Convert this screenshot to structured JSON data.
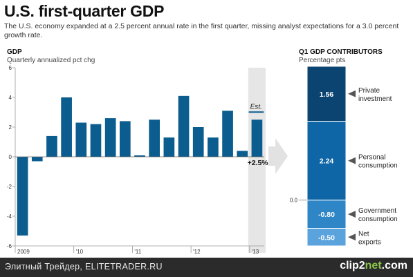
{
  "header": {
    "title": "U.S. first-quarter GDP",
    "subtitle": "The U.S. economy expanded at a 2.5 percent annual rate in the first quarter, missing analyst expectations for a 3.0 percent growth rate."
  },
  "left_panel": {
    "title": "GDP",
    "subtitle": "Quarterly annualized pct chg"
  },
  "right_panel": {
    "title": "Q1 GDP CONTRIBUTORS",
    "subtitle": "Percentage pts"
  },
  "footer": {
    "text": "Элитный Трейдер, ELITETRADER.RU",
    "logo_main": "clip2",
    "logo_accent": "net",
    "logo_suffix": ".com"
  },
  "colors": {
    "bar": "#0a5d8e",
    "dark": "#0b4470",
    "mid": "#0e66a6",
    "light1": "#2f86c6",
    "light2": "#5ba3dc",
    "est_band": "#e6e6e6",
    "arrow": "#e2e2e2"
  },
  "chart_data": [
    {
      "type": "bar",
      "title": "GDP",
      "subtitle": "Quarterly annualized pct chg",
      "x_tick_labels": [
        "2009",
        "'10",
        "'11",
        "'12",
        "'13"
      ],
      "values": [
        -5.3,
        -0.3,
        1.4,
        4.0,
        2.3,
        2.2,
        2.6,
        2.4,
        0.1,
        2.5,
        1.3,
        4.1,
        2.0,
        1.3,
        3.1,
        0.4,
        2.5
      ],
      "ylim": [
        -6,
        6
      ],
      "yticks": [
        -6,
        -4,
        -2,
        0,
        2,
        4,
        6
      ],
      "estimate_label": "Est.",
      "estimate_value_label": "+2.5%",
      "grid": false
    },
    {
      "type": "bar",
      "title": "Q1 GDP CONTRIBUTORS",
      "subtitle": "Percentage pts",
      "zero_label": "0.0",
      "segments": [
        {
          "name": "Private investment",
          "label": "1.56",
          "value": 1.56
        },
        {
          "name": "Personal consumption",
          "label": "2.24",
          "value": 2.24
        },
        {
          "name": "Government consumption",
          "label": "-0.80",
          "value": -0.8
        },
        {
          "name": "Net exports",
          "label": "-0.50",
          "value": -0.5
        }
      ],
      "range": [
        -1.3,
        3.8
      ]
    }
  ]
}
